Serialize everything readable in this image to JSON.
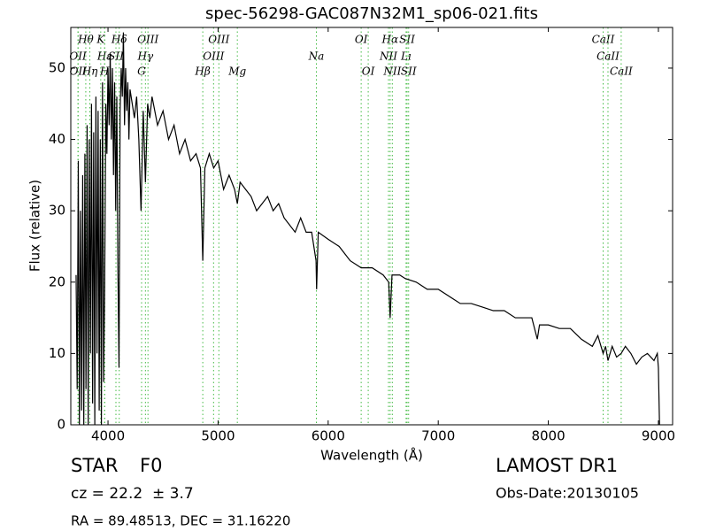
{
  "chart_data": {
    "type": "line",
    "title": "spec-56298-GAC087N32M1_sp06-021.fits",
    "xlabel": "Wavelength (Å)",
    "ylabel": "Flux (relative)",
    "xlim": [
      3662,
      9129
    ],
    "ylim": [
      0,
      55.7
    ],
    "xticks": [
      4000,
      5000,
      6000,
      7000,
      8000,
      9000
    ],
    "yticks": [
      0,
      10,
      20,
      30,
      40,
      50
    ],
    "color": "#000000",
    "line_color": "#44bb44",
    "x": [
      3710,
      3720,
      3730,
      3740,
      3750,
      3760,
      3770,
      3780,
      3790,
      3800,
      3810,
      3820,
      3830,
      3840,
      3850,
      3860,
      3870,
      3880,
      3890,
      3900,
      3910,
      3920,
      3930,
      3940,
      3950,
      3960,
      3970,
      3980,
      3990,
      4000,
      4010,
      4020,
      4030,
      4040,
      4050,
      4060,
      4070,
      4080,
      4090,
      4100,
      4110,
      4120,
      4130,
      4140,
      4150,
      4160,
      4170,
      4180,
      4190,
      4200,
      4220,
      4240,
      4260,
      4280,
      4300,
      4320,
      4340,
      4360,
      4380,
      4400,
      4450,
      4500,
      4550,
      4600,
      4650,
      4700,
      4750,
      4800,
      4840,
      4861,
      4880,
      4920,
      4960,
      5000,
      5050,
      5100,
      5150,
      5175,
      5200,
      5250,
      5300,
      5350,
      5400,
      5450,
      5500,
      5550,
      5600,
      5650,
      5700,
      5750,
      5800,
      5850,
      5890,
      5895,
      5910,
      6000,
      6100,
      6200,
      6300,
      6400,
      6500,
      6550,
      6563,
      6580,
      6650,
      6700,
      6800,
      6900,
      7000,
      7100,
      7200,
      7300,
      7400,
      7500,
      7600,
      7700,
      7800,
      7850,
      7900,
      7920,
      8000,
      8100,
      8200,
      8300,
      8400,
      8450,
      8498,
      8520,
      8542,
      8580,
      8620,
      8662,
      8700,
      8750,
      8800,
      8850,
      8900,
      8960,
      8990,
      9000,
      9010
    ],
    "values": [
      21,
      5,
      37,
      0,
      30,
      2,
      35,
      0,
      38,
      5,
      42,
      0,
      40,
      10,
      45,
      3,
      41,
      0,
      46,
      10,
      44,
      2,
      40,
      0,
      48,
      6,
      20,
      45,
      38,
      50,
      42,
      52,
      40,
      50,
      35,
      48,
      30,
      46,
      22,
      8,
      44,
      50,
      46,
      55,
      42,
      50,
      44,
      48,
      40,
      47,
      45,
      43,
      46,
      40,
      30,
      44,
      34,
      45,
      43,
      46,
      42,
      44,
      40,
      42,
      38,
      40,
      37,
      38,
      36,
      23,
      36,
      38,
      36,
      37,
      33,
      35,
      33,
      31,
      34,
      33,
      32,
      30,
      31,
      32,
      30,
      31,
      29,
      28,
      27,
      29,
      27,
      27,
      23,
      19,
      27,
      26,
      25,
      23,
      22,
      22,
      21,
      20,
      15,
      21,
      21,
      20.5,
      20,
      19,
      19,
      18,
      17,
      17,
      16.5,
      16,
      16,
      15,
      15,
      15,
      12,
      14,
      14,
      13.5,
      13.5,
      12,
      11,
      12.5,
      10,
      11,
      9,
      11,
      9.5,
      10,
      11,
      10,
      8.5,
      9.5,
      10,
      9,
      10,
      8,
      0
    ],
    "line_rows": [
      [
        {
          "label": "Hθ",
          "x": 3798
        },
        {
          "label": "K",
          "x": 3934
        },
        {
          "label": "Hδ",
          "x": 4102
        },
        {
          "label": "OIII",
          "x": 4363
        },
        {
          "label": "OIII",
          "x": 5007
        },
        {
          "label": "OI",
          "x": 6300
        },
        {
          "label": "Hα",
          "x": 6563
        },
        {
          "label": "SII",
          "x": 6717
        },
        {
          "label": "CaII",
          "x": 8498
        }
      ],
      [
        {
          "label": "OII",
          "x": 3727
        },
        {
          "label": "Hε",
          "x": 3970
        },
        {
          "label": "SII",
          "x": 4072
        },
        {
          "label": "Hγ",
          "x": 4340
        },
        {
          "label": "OIII",
          "x": 4959
        },
        {
          "label": "Na",
          "x": 5893
        },
        {
          "label": "NII",
          "x": 6548
        },
        {
          "label": "Lı",
          "x": 6708
        },
        {
          "label": "CaII",
          "x": 8542
        }
      ],
      [
        {
          "label": "OII",
          "x": 3729
        },
        {
          "label": "Hη",
          "x": 3835
        },
        {
          "label": "H",
          "x": 3969
        },
        {
          "label": "G",
          "x": 4305
        },
        {
          "label": "Hβ",
          "x": 4861
        },
        {
          "label": "Mg",
          "x": 5175
        },
        {
          "label": "OI",
          "x": 6364
        },
        {
          "label": "NII",
          "x": 6583
        },
        {
          "label": "SII",
          "x": 6731
        },
        {
          "label": "CaII",
          "x": 8662
        }
      ]
    ]
  },
  "info": {
    "object": "STAR",
    "subclass": "F0",
    "cz": "cz = 22.2  ± 3.7",
    "coords": "RA = 89.48513, DEC = 31.16220",
    "survey": "LAMOST DR1",
    "date": "Obs-Date:20130105"
  }
}
